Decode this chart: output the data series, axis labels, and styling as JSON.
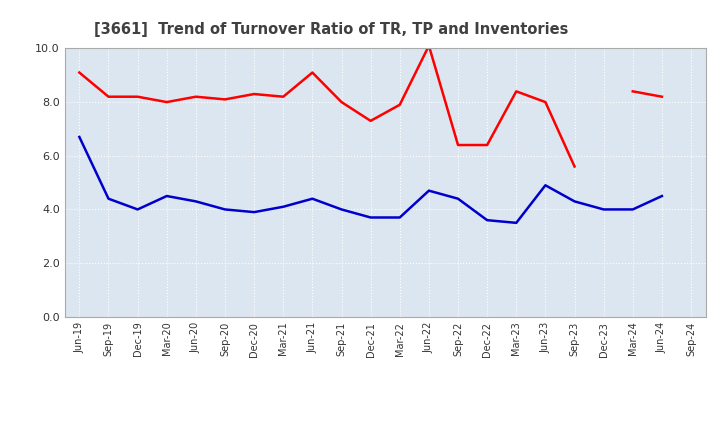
{
  "title": "[3661]  Trend of Turnover Ratio of TR, TP and Inventories",
  "x_labels": [
    "Jun-19",
    "Sep-19",
    "Dec-19",
    "Mar-20",
    "Jun-20",
    "Sep-20",
    "Dec-20",
    "Mar-21",
    "Jun-21",
    "Sep-21",
    "Dec-21",
    "Mar-22",
    "Jun-22",
    "Sep-22",
    "Dec-22",
    "Mar-23",
    "Jun-23",
    "Sep-23",
    "Dec-23",
    "Mar-24",
    "Jun-24",
    "Sep-24"
  ],
  "trade_receivables": [
    9.1,
    8.2,
    8.2,
    8.0,
    8.2,
    8.1,
    8.3,
    8.2,
    9.1,
    8.0,
    7.3,
    7.9,
    10.1,
    6.4,
    6.4,
    8.4,
    8.0,
    5.6,
    null,
    8.4,
    8.2,
    null
  ],
  "trade_payables": [
    6.7,
    4.4,
    4.0,
    4.5,
    4.3,
    4.0,
    3.9,
    4.1,
    4.4,
    4.0,
    3.7,
    3.7,
    4.7,
    4.4,
    3.6,
    3.5,
    4.9,
    4.3,
    4.0,
    4.0,
    4.5,
    null
  ],
  "inventories": [
    null,
    null,
    null,
    null,
    null,
    null,
    null,
    null,
    null,
    null,
    null,
    null,
    null,
    null,
    null,
    null,
    null,
    null,
    null,
    null,
    null,
    null
  ],
  "ylim": [
    0.0,
    10.0
  ],
  "yticks": [
    0.0,
    2.0,
    4.0,
    6.0,
    8.0,
    10.0
  ],
  "tr_color": "#ff0000",
  "tp_color": "#0000cc",
  "inv_color": "#008000",
  "background_color": "#ffffff",
  "plot_bg_color": "#dce6f0",
  "grid_color": "#ffffff",
  "title_color": "#404040"
}
